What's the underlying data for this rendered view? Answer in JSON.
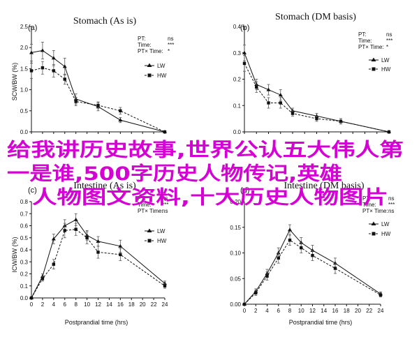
{
  "chart_data": [
    {
      "type": "line",
      "panel": "(a)",
      "title": "Stomach (As is)",
      "xlabel": "",
      "ylabel": "SCW/BW (%)",
      "xlim": [
        0,
        24
      ],
      "ylim": [
        0,
        2.5
      ],
      "x_ticks": [],
      "y_ticks": [
        "0.0",
        "0.5",
        "1.0",
        "1.5",
        "2.0",
        "2.5"
      ],
      "y_tick_values": [
        0,
        0.5,
        1.0,
        1.5,
        2.0,
        2.5
      ],
      "stats": [
        {
          "label": "PT:",
          "value": "ns"
        },
        {
          "label": "Time:",
          "value": "***"
        },
        {
          "label": "PT× Time:",
          "value": "*"
        }
      ],
      "series": [
        {
          "name": "LW",
          "style": "solid",
          "marker": "triangle",
          "x": [
            0,
            2,
            4,
            6,
            8,
            12,
            16,
            24
          ],
          "y": [
            1.88,
            1.93,
            1.75,
            1.55,
            0.78,
            0.6,
            0.28,
            0.0
          ],
          "err": [
            0.2,
            0.2,
            0.18,
            0.2,
            0.12,
            0.1,
            0.06,
            0.0
          ]
        },
        {
          "name": "HW",
          "style": "dashed",
          "marker": "square",
          "x": [
            0,
            2,
            4,
            6,
            8,
            12,
            16,
            24
          ],
          "y": [
            1.45,
            1.52,
            1.45,
            1.25,
            0.72,
            0.63,
            0.5,
            0.0
          ],
          "err": [
            0.18,
            0.15,
            0.15,
            0.12,
            0.1,
            0.08,
            0.08,
            0.0
          ]
        }
      ]
    },
    {
      "type": "line",
      "panel": "(b)",
      "title": "Stomach (DM basis)",
      "xlabel": "",
      "ylabel": "",
      "xlim": [
        0,
        24
      ],
      "ylim": [
        0,
        0.4
      ],
      "x_ticks": [],
      "y_ticks": [
        "0.0",
        "0.1",
        "0.2",
        "0.3",
        "0.4"
      ],
      "y_tick_values": [
        0,
        0.1,
        0.2,
        0.3,
        0.4
      ],
      "stats": [
        {
          "label": "PT:",
          "value": "ns"
        },
        {
          "label": "Time:",
          "value": "***"
        },
        {
          "label": "PT× Time:",
          "value": "*"
        }
      ],
      "series": [
        {
          "name": "LW",
          "style": "solid",
          "marker": "triangle",
          "x": [
            0,
            2,
            4,
            6,
            8,
            12,
            16,
            24
          ],
          "y": [
            0.3,
            0.18,
            0.16,
            0.14,
            0.08,
            0.06,
            0.04,
            0.0
          ],
          "err": [
            0.03,
            0.02,
            0.02,
            0.02,
            0.01,
            0.01,
            0.01,
            0.0
          ]
        },
        {
          "name": "HW",
          "style": "dashed",
          "marker": "square",
          "x": [
            0,
            2,
            4,
            6,
            8,
            12,
            16,
            24
          ],
          "y": [
            0.26,
            0.17,
            0.11,
            0.11,
            0.07,
            0.05,
            0.04,
            0.0
          ],
          "err": [
            0.03,
            0.02,
            0.02,
            0.02,
            0.01,
            0.01,
            0.01,
            0.0
          ]
        }
      ]
    },
    {
      "type": "line",
      "panel": "(c)",
      "title": "Intestine (As is)",
      "xlabel": "Postprandial time (hrs)",
      "ylabel": "ICW/BW (%)",
      "xlim": [
        0,
        24
      ],
      "ylim": [
        0,
        0.8
      ],
      "x_ticks": [
        "0",
        "2",
        "4",
        "6",
        "8",
        "10",
        "12",
        "14",
        "16",
        "18",
        "20",
        "22",
        "24"
      ],
      "y_ticks": [
        "0.0",
        "0.1",
        "0.2",
        "0.3",
        "0.4",
        "0.5",
        "0.6",
        "0.7",
        "0.8"
      ],
      "y_tick_values": [
        0,
        0.1,
        0.2,
        0.3,
        0.4,
        0.5,
        0.6,
        0.7,
        0.8
      ],
      "stats": [
        {
          "label": "PT:",
          "value": "ns"
        },
        {
          "label": "Time:",
          "value": "***"
        },
        {
          "label": "PT× Time:",
          "value": "ns"
        }
      ],
      "series": [
        {
          "name": "LW",
          "style": "solid",
          "marker": "triangle",
          "x": [
            0,
            2,
            4,
            6,
            8,
            10,
            12,
            16,
            24
          ],
          "y": [
            0.0,
            0.18,
            0.49,
            0.6,
            0.65,
            0.52,
            0.47,
            0.43,
            0.12
          ],
          "err": [
            0.0,
            0.02,
            0.04,
            0.05,
            0.05,
            0.04,
            0.04,
            0.05,
            0.02
          ]
        },
        {
          "name": "HW",
          "style": "dashed",
          "marker": "square",
          "x": [
            0,
            2,
            4,
            6,
            8,
            10,
            12,
            16,
            24
          ],
          "y": [
            0.0,
            0.16,
            0.28,
            0.56,
            0.57,
            0.5,
            0.38,
            0.36,
            0.1
          ],
          "err": [
            0.0,
            0.02,
            0.04,
            0.06,
            0.05,
            0.05,
            0.05,
            0.05,
            0.02
          ]
        }
      ]
    },
    {
      "type": "line",
      "panel": "(d)",
      "title": "Intestine (DM basis)",
      "xlabel": "Postprandial time (hrs)",
      "ylabel": "",
      "xlim": [
        0,
        24
      ],
      "ylim": [
        0,
        0.2
      ],
      "x_ticks": [
        "0",
        "2",
        "4",
        "6",
        "8",
        "10",
        "12",
        "14",
        "16",
        "18",
        "20",
        "22",
        "24"
      ],
      "y_ticks": [
        "0.00",
        "0.05",
        "0.10",
        "0.15",
        "0.20"
      ],
      "y_tick_values": [
        0,
        0.05,
        0.1,
        0.15,
        0.2
      ],
      "stats": [
        {
          "label": "PT:",
          "value": "ns"
        },
        {
          "label": "Time:",
          "value": "***"
        },
        {
          "label": "PT× Time:",
          "value": "ns"
        }
      ],
      "series": [
        {
          "name": "LW",
          "style": "solid",
          "marker": "triangle",
          "x": [
            0,
            2,
            4,
            6,
            8,
            10,
            12,
            16,
            24
          ],
          "y": [
            0.0,
            0.025,
            0.06,
            0.1,
            0.145,
            0.12,
            0.105,
            0.08,
            0.02
          ],
          "err": [
            0.0,
            0.005,
            0.008,
            0.01,
            0.01,
            0.01,
            0.01,
            0.01,
            0.004
          ]
        },
        {
          "name": "HW",
          "style": "dashed",
          "marker": "square",
          "x": [
            0,
            2,
            4,
            6,
            8,
            10,
            12,
            16,
            24
          ],
          "y": [
            0.0,
            0.022,
            0.055,
            0.09,
            0.125,
            0.11,
            0.095,
            0.07,
            0.018
          ],
          "err": [
            0.0,
            0.005,
            0.008,
            0.01,
            0.01,
            0.01,
            0.01,
            0.01,
            0.004
          ]
        }
      ]
    }
  ],
  "overlay": {
    "lines": [
      "给我讲历史故事,世界公认五大伟人第",
      "一是谁,500字历史人物传记,英雄",
      "人物图文资料,十大历史人物图片"
    ],
    "color": "#d400d4"
  }
}
